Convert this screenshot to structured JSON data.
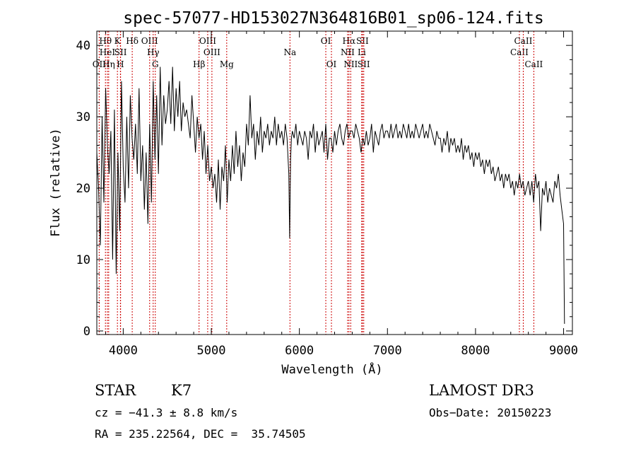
{
  "chart_data": {
    "type": "line",
    "title": "spec-57077-HD153027N364816B01_sp06-124.fits",
    "xlabel": "Wavelength (Å)",
    "ylabel": "Flux (relative)",
    "xlim": [
      3700,
      9100
    ],
    "ylim": [
      -0.5,
      42
    ],
    "x_ticks": [
      4000,
      5000,
      6000,
      7000,
      8000,
      9000
    ],
    "y_ticks": [
      0,
      10,
      20,
      30,
      40
    ],
    "grid": false,
    "series": [
      {
        "name": "flux",
        "x": [
          3700,
          3720,
          3740,
          3760,
          3780,
          3800,
          3820,
          3840,
          3860,
          3880,
          3900,
          3920,
          3940,
          3960,
          3980,
          4000,
          4020,
          4040,
          4060,
          4080,
          4100,
          4120,
          4140,
          4160,
          4180,
          4200,
          4220,
          4240,
          4260,
          4280,
          4300,
          4320,
          4340,
          4360,
          4380,
          4400,
          4420,
          4440,
          4460,
          4480,
          4500,
          4520,
          4540,
          4560,
          4580,
          4600,
          4620,
          4640,
          4660,
          4680,
          4700,
          4720,
          4740,
          4760,
          4780,
          4800,
          4820,
          4840,
          4860,
          4880,
          4900,
          4920,
          4940,
          4960,
          4980,
          5000,
          5020,
          5040,
          5060,
          5080,
          5100,
          5120,
          5140,
          5160,
          5180,
          5200,
          5220,
          5240,
          5260,
          5280,
          5300,
          5320,
          5340,
          5360,
          5380,
          5400,
          5420,
          5440,
          5460,
          5480,
          5500,
          5520,
          5540,
          5560,
          5580,
          5600,
          5620,
          5640,
          5660,
          5680,
          5700,
          5720,
          5740,
          5760,
          5780,
          5800,
          5820,
          5840,
          5860,
          5880,
          5890,
          5900,
          5910,
          5920,
          5940,
          5960,
          5980,
          6000,
          6020,
          6040,
          6060,
          6080,
          6100,
          6120,
          6140,
          6160,
          6180,
          6200,
          6220,
          6240,
          6260,
          6280,
          6300,
          6320,
          6340,
          6360,
          6380,
          6400,
          6420,
          6440,
          6460,
          6480,
          6500,
          6520,
          6540,
          6560,
          6580,
          6600,
          6620,
          6640,
          6660,
          6680,
          6700,
          6720,
          6740,
          6760,
          6780,
          6800,
          6820,
          6840,
          6860,
          6880,
          6900,
          6920,
          6940,
          6960,
          6980,
          7000,
          7020,
          7040,
          7060,
          7080,
          7100,
          7120,
          7140,
          7160,
          7180,
          7200,
          7220,
          7240,
          7260,
          7280,
          7300,
          7320,
          7340,
          7360,
          7380,
          7400,
          7420,
          7440,
          7460,
          7480,
          7500,
          7520,
          7540,
          7560,
          7580,
          7600,
          7620,
          7640,
          7660,
          7680,
          7700,
          7720,
          7740,
          7760,
          7780,
          7800,
          7820,
          7840,
          7860,
          7880,
          7900,
          7920,
          7940,
          7960,
          7980,
          8000,
          8020,
          8040,
          8060,
          8080,
          8100,
          8120,
          8140,
          8160,
          8180,
          8200,
          8220,
          8240,
          8260,
          8280,
          8300,
          8320,
          8340,
          8360,
          8380,
          8400,
          8420,
          8440,
          8460,
          8480,
          8500,
          8520,
          8540,
          8560,
          8580,
          8600,
          8620,
          8640,
          8660,
          8680,
          8700,
          8720,
          8740,
          8760,
          8780,
          8800,
          8820,
          8840,
          8860,
          8880,
          8900,
          8920,
          8940,
          8960,
          8980,
          9000,
          9010
        ],
        "y": [
          25,
          20,
          12,
          30,
          18,
          34,
          26,
          22,
          28,
          10,
          31,
          8,
          25,
          14,
          35,
          23,
          18,
          30,
          20,
          33,
          27,
          24,
          29,
          22,
          34,
          21,
          26,
          17,
          25,
          15,
          29,
          18,
          35,
          24,
          33,
          22,
          37,
          26,
          33,
          29,
          31,
          35,
          29,
          37,
          28,
          34,
          30,
          35,
          28,
          32,
          30,
          31,
          29,
          27,
          33,
          29,
          25,
          30,
          27,
          29,
          24,
          28,
          22,
          26,
          21,
          23,
          20,
          22,
          18,
          24,
          17,
          23,
          21,
          26,
          18,
          24,
          21,
          26,
          22,
          28,
          23,
          26,
          21,
          25,
          23,
          29,
          26,
          33,
          27,
          29,
          24,
          28,
          26,
          30,
          25,
          28,
          27,
          29,
          26,
          28,
          27,
          30,
          26,
          29,
          27,
          28,
          26,
          29,
          27,
          22,
          13,
          24,
          27,
          28,
          27,
          29,
          26,
          28,
          27,
          26,
          28,
          27,
          24,
          28,
          27,
          29,
          25,
          28,
          26,
          27,
          28,
          25,
          29,
          24,
          27,
          27,
          25,
          28,
          26,
          28,
          29,
          27,
          26,
          28,
          29,
          27,
          28,
          28,
          27,
          29,
          28,
          27,
          25,
          27,
          26,
          28,
          26,
          27,
          29,
          25,
          28,
          27,
          26,
          28,
          29,
          27,
          28,
          28,
          27,
          29,
          27,
          28,
          29,
          27,
          28,
          27,
          29,
          28,
          27,
          29,
          27,
          28,
          27,
          29,
          28,
          27,
          28,
          29,
          27,
          28,
          27,
          29,
          28,
          27,
          26,
          28,
          27,
          27,
          25,
          27,
          26,
          28,
          25,
          27,
          26,
          27,
          25,
          26,
          25,
          27,
          24,
          26,
          25,
          26,
          24,
          25,
          23,
          25,
          24,
          25,
          23,
          24,
          22,
          24,
          23,
          24,
          22,
          23,
          21,
          22,
          23,
          21,
          22,
          20,
          22,
          21,
          22,
          20,
          21,
          19,
          21,
          20,
          22,
          20,
          21,
          19,
          20,
          21,
          19,
          21,
          18,
          22,
          20,
          21,
          14,
          20,
          19,
          21,
          18,
          20,
          19,
          18,
          21,
          20,
          22,
          19,
          17,
          15,
          1
        ]
      }
    ],
    "spectral_lines": [
      {
        "label": "OII",
        "wavelength": 3727,
        "row": 3
      },
      {
        "label": "Hθ",
        "wavelength": 3798,
        "row": 1
      },
      {
        "label": "HeI",
        "wavelength": 3820,
        "row": 2
      },
      {
        "label": "Hη",
        "wavelength": 3835,
        "row": 3
      },
      {
        "label": "K",
        "wavelength": 3934,
        "row": 1
      },
      {
        "label": "SII",
        "wavelength": 3970,
        "row": 2
      },
      {
        "label": "H",
        "wavelength": 3968,
        "row": 3
      },
      {
        "label": "Hδ",
        "wavelength": 4102,
        "row": 1
      },
      {
        "label": "OIII",
        "wavelength": 4300,
        "row": 1
      },
      {
        "label": "Hγ",
        "wavelength": 4340,
        "row": 2
      },
      {
        "label": "G",
        "wavelength": 4364,
        "row": 3
      },
      {
        "label": "Hβ",
        "wavelength": 4861,
        "row": 3
      },
      {
        "label": "OIII",
        "wavelength": 4959,
        "row": 1
      },
      {
        "label": "OIII",
        "wavelength": 5007,
        "row": 2
      },
      {
        "label": "Mg",
        "wavelength": 5175,
        "row": 3
      },
      {
        "label": "Na",
        "wavelength": 5893,
        "row": 2
      },
      {
        "label": "OI",
        "wavelength": 6300,
        "row": 1
      },
      {
        "label": "OI",
        "wavelength": 6364,
        "row": 3
      },
      {
        "label": "Hα",
        "wavelength": 6563,
        "row": 1
      },
      {
        "label": "NII",
        "wavelength": 6548,
        "row": 2
      },
      {
        "label": "NII",
        "wavelength": 6583,
        "row": 3
      },
      {
        "label": "SII",
        "wavelength": 6716,
        "row": 1
      },
      {
        "label": "Li",
        "wavelength": 6708,
        "row": 2
      },
      {
        "label": "SII",
        "wavelength": 6731,
        "row": 3
      },
      {
        "label": "CaII",
        "wavelength": 8498,
        "row": 2
      },
      {
        "label": "CaII",
        "wavelength": 8542,
        "row": 1
      },
      {
        "label": "CaII",
        "wavelength": 8662,
        "row": 3
      }
    ]
  },
  "info": {
    "object_class": "STAR",
    "subclass": "K7",
    "survey": "LAMOST DR3",
    "redshift": "cz = −41.3 ± 8.8 km/s",
    "obs_date": "Obs−Date: 20150223",
    "coords": "RA = 235.22564, DEC =  35.74505"
  }
}
